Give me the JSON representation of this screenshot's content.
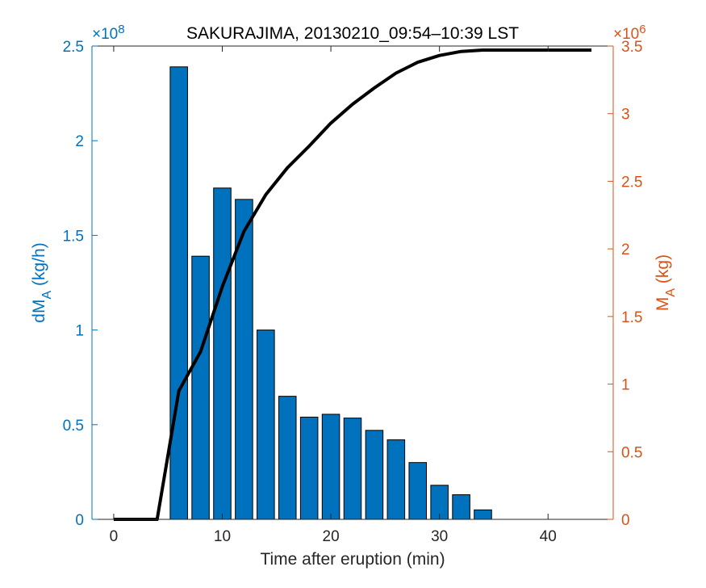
{
  "chart_data": {
    "type": "bar+line",
    "title": "SAKURAJIMA, 20130210_09:54–10:39 LST",
    "xlabel": "Time after eruption (min)",
    "xlim": [
      -2,
      46
    ],
    "x_ticks": [
      0,
      10,
      20,
      30,
      40
    ],
    "x_tick_labels": [
      "0",
      "10",
      "20",
      "30",
      "40"
    ],
    "left_axis": {
      "label_main": "dM",
      "label_sub": "A",
      "label_unit": " (kg/h)",
      "exponent_label": "×10",
      "exponent_power": "8",
      "ylim": [
        0,
        2.5
      ],
      "ticks": [
        0,
        0.5,
        1,
        1.5,
        2,
        2.5
      ],
      "tick_labels": [
        "0",
        "0.5",
        "1",
        "1.5",
        "2",
        "2.5"
      ],
      "color": "#0072BD"
    },
    "right_axis": {
      "label_main": "M",
      "label_sub": "A",
      "label_unit": " (kg)",
      "exponent_label": "×10",
      "exponent_power": "6",
      "ylim": [
        0,
        3.5
      ],
      "ticks": [
        0,
        0.5,
        1,
        1.5,
        2,
        2.5,
        3,
        3.5
      ],
      "tick_labels": [
        "0",
        "0.5",
        "1",
        "1.5",
        "2",
        "2.5",
        "3",
        "3.5"
      ],
      "color": "#D95319"
    },
    "bars": {
      "axis": "left",
      "color": "#0072BD",
      "x": [
        6,
        8,
        10,
        12,
        14,
        16,
        18,
        20,
        22,
        24,
        26,
        28,
        30,
        32,
        34
      ],
      "values": [
        2.39,
        1.39,
        1.75,
        1.69,
        1.0,
        0.65,
        0.54,
        0.555,
        0.535,
        0.47,
        0.42,
        0.3,
        0.18,
        0.13,
        0.05
      ]
    },
    "line": {
      "axis": "right",
      "color": "#000000",
      "x": [
        0,
        4,
        6,
        8,
        10,
        12,
        14,
        16,
        18,
        20,
        22,
        24,
        26,
        28,
        30,
        32,
        34,
        36,
        44
      ],
      "y": [
        0,
        0,
        0.95,
        1.24,
        1.72,
        2.13,
        2.4,
        2.6,
        2.76,
        2.93,
        3.07,
        3.19,
        3.3,
        3.38,
        3.43,
        3.46,
        3.47,
        3.47,
        3.47
      ]
    }
  }
}
